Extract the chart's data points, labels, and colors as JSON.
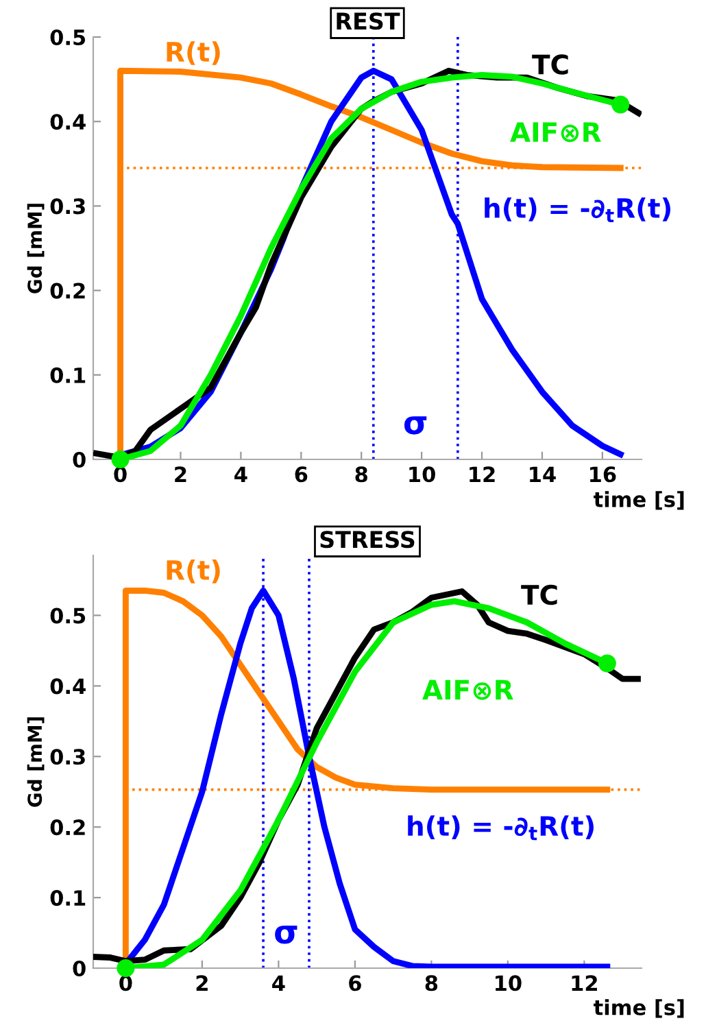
{
  "chart_data": [
    {
      "type": "line",
      "title": "REST",
      "xlabel": "time [s]",
      "ylabel": "Gd [mM]",
      "xlim": [
        -0.9,
        17.3
      ],
      "ylim": [
        0,
        0.5
      ],
      "xticks": [
        0,
        2,
        4,
        6,
        8,
        10,
        12,
        14,
        16
      ],
      "yticks": [
        0,
        0.1,
        0.2,
        0.3,
        0.4,
        0.5
      ],
      "grid": false,
      "legend": false,
      "series": [
        {
          "name": "R(t)",
          "color": "#ff8000",
          "x": [
            0,
            0,
            2,
            4,
            5,
            6,
            7,
            8,
            9,
            10,
            11,
            12,
            13,
            14,
            16.6
          ],
          "values": [
            0,
            0.46,
            0.459,
            0.452,
            0.445,
            0.432,
            0.418,
            0.405,
            0.39,
            0.375,
            0.362,
            0.353,
            0.348,
            0.346,
            0.345
          ]
        },
        {
          "name": "h(t) = -∂$_{t}$R(t)",
          "color": "#0000ff",
          "x": [
            0,
            1,
            2,
            3,
            4,
            5,
            5.4,
            6,
            7,
            8,
            8.4,
            9,
            10,
            11,
            11.2,
            12,
            13,
            14,
            15,
            16,
            16.6
          ],
          "values": [
            0.005,
            0.015,
            0.037,
            0.08,
            0.15,
            0.225,
            0.26,
            0.32,
            0.4,
            0.452,
            0.46,
            0.45,
            0.39,
            0.29,
            0.279,
            0.19,
            0.13,
            0.08,
            0.04,
            0.016,
            0.006
          ]
        },
        {
          "name": "TC",
          "color": "#000000",
          "x": [
            -0.8,
            0,
            0.5,
            1,
            2,
            3,
            4,
            4.5,
            5,
            6,
            7,
            8,
            8.4,
            9,
            10,
            10.9,
            11.5,
            12.5,
            13.5,
            14.5,
            15.5,
            16.5,
            17.2
          ],
          "values": [
            0.007,
            0.002,
            0.01,
            0.035,
            0.06,
            0.085,
            0.15,
            0.18,
            0.23,
            0.31,
            0.37,
            0.415,
            0.424,
            0.435,
            0.445,
            0.46,
            0.455,
            0.452,
            0.452,
            0.44,
            0.43,
            0.425,
            0.41
          ]
        },
        {
          "name": "AIF⊗R",
          "color": "#00ee00",
          "x": [
            0,
            1,
            2,
            3,
            4,
            5,
            6,
            7,
            8,
            9,
            10,
            11,
            12,
            13,
            14,
            15,
            16.6
          ],
          "values": [
            0,
            0.01,
            0.04,
            0.1,
            0.17,
            0.25,
            0.32,
            0.38,
            0.415,
            0.435,
            0.447,
            0.452,
            0.455,
            0.453,
            0.445,
            0.435,
            0.42
          ]
        },
        {
          "type": "scatter",
          "color": "#00ee00",
          "x": [
            0,
            16.6
          ],
          "values": [
            0,
            0.42
          ]
        }
      ],
      "ref_lines": [
        {
          "axis": "x",
          "value": 8.4,
          "color": "#0000ff",
          "line_style": "dotted"
        },
        {
          "axis": "x",
          "value": 11.2,
          "color": "#0000ff",
          "line_style": "dotted"
        },
        {
          "axis": "y",
          "value": 0.345,
          "color": "#ff8000",
          "line_style": "dotted"
        }
      ],
      "annotations": [
        "σ"
      ]
    },
    {
      "type": "line",
      "title": "STRESS",
      "xlabel": "time [s]",
      "ylabel": "Gd [mM]",
      "xlim": [
        -0.85,
        13.5
      ],
      "ylim": [
        0,
        0.585
      ],
      "xticks": [
        0,
        2,
        4,
        6,
        8,
        10,
        12
      ],
      "yticks": [
        0,
        0.1,
        0.2,
        0.3,
        0.4,
        0.5
      ],
      "grid": false,
      "legend": false,
      "series": [
        {
          "name": "R(t)",
          "color": "#ff8000",
          "x": [
            0,
            0,
            0.5,
            1,
            1.5,
            2,
            2.5,
            3,
            3.5,
            4,
            4.5,
            5,
            5.5,
            6,
            7,
            8,
            12.6
          ],
          "values": [
            0,
            0.535,
            0.535,
            0.532,
            0.52,
            0.5,
            0.47,
            0.43,
            0.39,
            0.35,
            0.31,
            0.285,
            0.27,
            0.26,
            0.255,
            0.253,
            0.253
          ]
        },
        {
          "name": "h(t) = -∂$_{t}$R(t)",
          "color": "#0000ff",
          "x": [
            0,
            0.5,
            1,
            1.5,
            2,
            2.5,
            3,
            3.3,
            3.6,
            4,
            4.4,
            4.8,
            5.2,
            5.6,
            6,
            6.5,
            7,
            7.5,
            8,
            12.6
          ],
          "values": [
            0.006,
            0.04,
            0.09,
            0.17,
            0.25,
            0.36,
            0.46,
            0.51,
            0.535,
            0.5,
            0.41,
            0.3,
            0.2,
            0.12,
            0.055,
            0.03,
            0.01,
            0.003,
            0.002,
            0.002
          ]
        },
        {
          "name": "TC",
          "color": "#000000",
          "x": [
            -0.85,
            -0.4,
            0,
            0.5,
            1,
            1.7,
            2.5,
            3,
            3.5,
            4,
            4.5,
            5,
            5.5,
            6,
            6.5,
            7,
            7.5,
            8,
            8.8,
            9.2,
            9.5,
            10,
            10.5,
            11,
            12,
            12.6,
            13,
            13.4
          ],
          "values": [
            0.016,
            0.015,
            0.01,
            0.012,
            0.025,
            0.027,
            0.06,
            0.1,
            0.15,
            0.21,
            0.26,
            0.34,
            0.39,
            0.44,
            0.48,
            0.49,
            0.505,
            0.525,
            0.534,
            0.515,
            0.49,
            0.478,
            0.474,
            0.465,
            0.445,
            0.425,
            0.41,
            0.41
          ]
        },
        {
          "name": "AIF⊗R",
          "color": "#00ee00",
          "x": [
            0,
            1,
            2,
            3,
            4,
            5,
            6,
            7,
            8,
            8.6,
            9.5,
            10.5,
            11.5,
            12.6
          ],
          "values": [
            0,
            0.005,
            0.04,
            0.11,
            0.21,
            0.32,
            0.42,
            0.49,
            0.515,
            0.52,
            0.51,
            0.49,
            0.46,
            0.432
          ]
        },
        {
          "type": "scatter",
          "color": "#00ee00",
          "x": [
            0,
            12.6
          ],
          "values": [
            0,
            0.432
          ]
        }
      ],
      "ref_lines": [
        {
          "axis": "x",
          "value": 3.6,
          "color": "#0000ff",
          "line_style": "dotted"
        },
        {
          "axis": "x",
          "value": 4.8,
          "color": "#0000ff",
          "line_style": "dotted"
        },
        {
          "axis": "y",
          "value": 0.253,
          "color": "#ff8000",
          "line_style": "dotted"
        }
      ],
      "annotations": [
        "σ"
      ]
    }
  ]
}
